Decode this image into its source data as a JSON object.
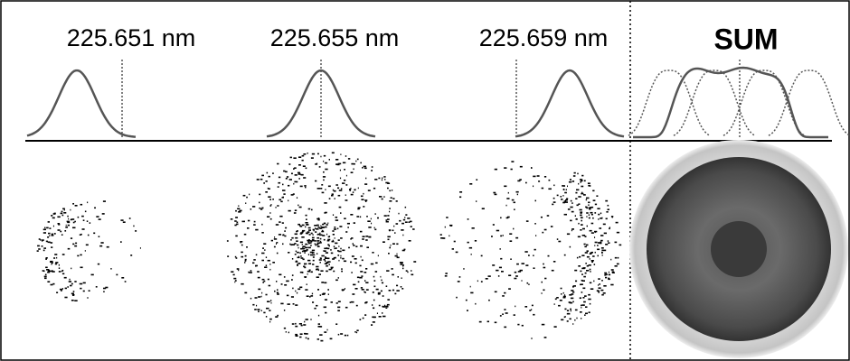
{
  "panels": [
    {
      "label": "225.651 nm"
    },
    {
      "label": "225.655 nm"
    },
    {
      "label": "225.659 nm"
    }
  ],
  "sum": {
    "label": "SUM"
  }
}
